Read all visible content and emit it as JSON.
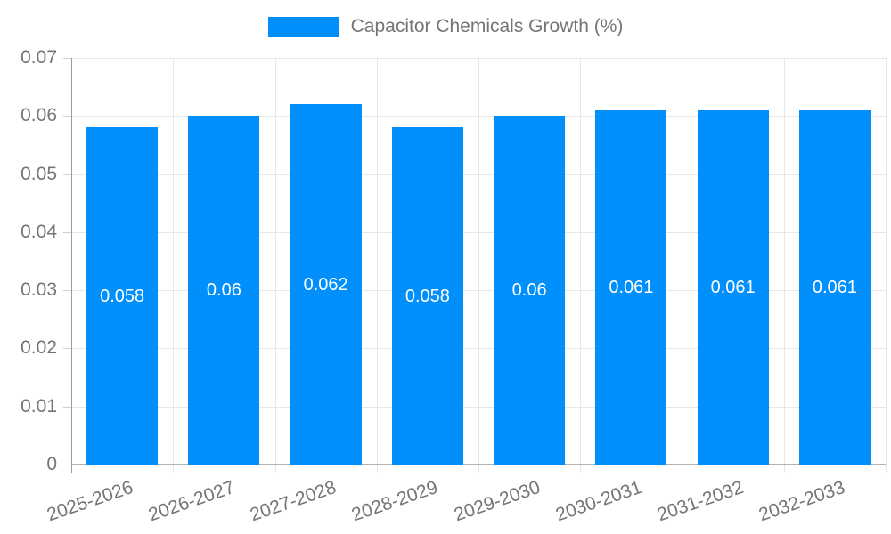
{
  "legend": {
    "label": "Capacitor Chemicals Growth (%)"
  },
  "chart_data": {
    "type": "bar",
    "title": "Capacitor Chemicals Growth (%)",
    "categories": [
      "2025-2026",
      "2026-2027",
      "2027-2028",
      "2028-2029",
      "2029-2030",
      "2030-2031",
      "2031-2032",
      "2032-2033"
    ],
    "values": [
      0.058,
      0.06,
      0.062,
      0.058,
      0.06,
      0.061,
      0.061,
      0.061
    ],
    "value_labels": [
      "0.058",
      "0.06",
      "0.062",
      "0.058",
      "0.06",
      "0.061",
      "0.061",
      "0.061"
    ],
    "y_ticks": [
      "0",
      "0.01",
      "0.02",
      "0.03",
      "0.04",
      "0.05",
      "0.06",
      "0.07"
    ],
    "ylim": [
      0,
      0.07
    ],
    "xlabel": "",
    "ylabel": "",
    "grid": true,
    "legend_position": "top",
    "value_label_position": "center-of-bar",
    "x_label_rotation_deg": -19,
    "colors": {
      "bar": "#008FFB",
      "axis_label": "#757575",
      "grid_line": "#e7e7e7",
      "axis_line": "#9b9b9b",
      "baseline": "#b3b3b3",
      "tick": "#cfcfcf",
      "value_label": "#ffffff",
      "legend_text": "#757575"
    }
  }
}
